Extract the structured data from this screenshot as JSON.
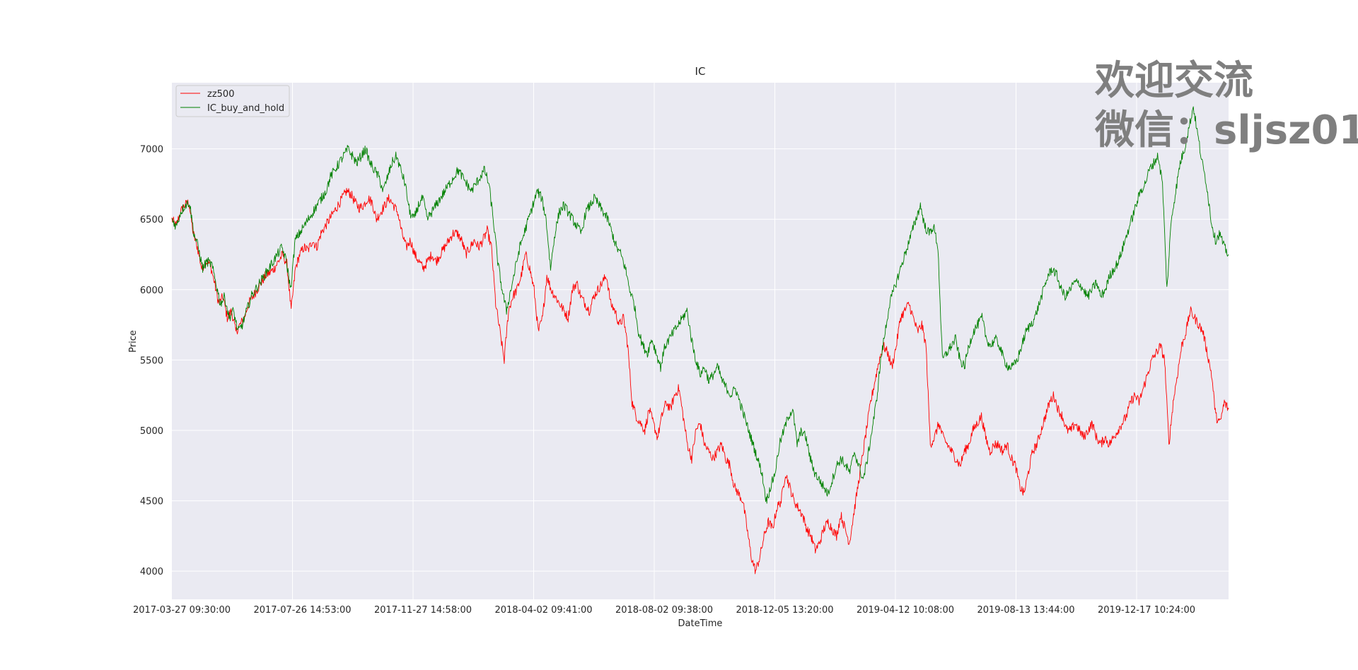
{
  "watermark": {
    "line1": "欢迎交流",
    "line2": "微信：sljsz01"
  },
  "chart_data": {
    "type": "line",
    "title": "IC",
    "xlabel": "DateTime",
    "ylabel": "Price",
    "x_tick_labels": [
      "2017-03-27 09:30:00",
      "2017-07-26 14:53:00",
      "2017-11-27 14:58:00",
      "2018-04-02 09:41:00",
      "2018-08-02 09:38:00",
      "2018-12-05 13:20:00",
      "2019-04-12 10:08:00",
      "2019-08-13 13:44:00",
      "2019-12-17 10:24:00"
    ],
    "y_ticks": [
      4000,
      4500,
      5000,
      5500,
      6000,
      6500,
      7000
    ],
    "ylim": [
      3800,
      7470
    ],
    "grid": true,
    "legend_position": "upper-left",
    "series": [
      {
        "name": "zz500",
        "color": "#ff0000",
        "values": [
          6500,
          6450,
          6550,
          6600,
          6620,
          6400,
          6300,
          6150,
          6200,
          6180,
          6050,
          5900,
          5950,
          5800,
          5850,
          5700,
          5750,
          5800,
          5900,
          5950,
          6000,
          6050,
          6100,
          6120,
          6150,
          6200,
          6250,
          6180,
          5850,
          6150,
          6250,
          6300,
          6280,
          6350,
          6300,
          6400,
          6450,
          6500,
          6550,
          6600,
          6650,
          6700,
          6680,
          6620,
          6580,
          6600,
          6650,
          6620,
          6500,
          6550,
          6600,
          6650,
          6600,
          6550,
          6400,
          6300,
          6350,
          6250,
          6200,
          6150,
          6200,
          6250,
          6200,
          6250,
          6300,
          6350,
          6400,
          6400,
          6350,
          6250,
          6300,
          6350,
          6300,
          6350,
          6420,
          6300,
          5900,
          5700,
          5500,
          5850,
          5950,
          6000,
          6100,
          6250,
          6150,
          6000,
          5700,
          5800,
          6100,
          6000,
          5950,
          5900,
          5850,
          5800,
          6000,
          6050,
          5950,
          5900,
          5850,
          5950,
          6000,
          6050,
          6100,
          5900,
          5850,
          5750,
          5800,
          5600,
          5200,
          5100,
          5050,
          5000,
          5150,
          5050,
          4950,
          5100,
          5200,
          5150,
          5250,
          5300,
          5100,
          4900,
          4800,
          5000,
          5050,
          4900,
          4850,
          4800,
          4850,
          4900,
          4800,
          4750,
          4600,
          4550,
          4500,
          4300,
          4100,
          4000,
          4100,
          4250,
          4350,
          4300,
          4450,
          4500,
          4700,
          4600,
          4500,
          4450,
          4400,
          4300,
          4250,
          4150,
          4200,
          4300,
          4350,
          4300,
          4250,
          4400,
          4300,
          4200,
          4400,
          4600,
          4800,
          5000,
          5200,
          5350,
          5500,
          5600,
          5550,
          5450,
          5600,
          5800,
          5850,
          5900,
          5800,
          5700,
          5750,
          5600,
          4900,
          4950,
          5050,
          4950,
          4900,
          4850,
          4800,
          4750,
          4850,
          4900,
          5000,
          5050,
          5100,
          4950,
          4850,
          4900,
          4900,
          4850,
          4900,
          4800,
          4750,
          4600,
          4550,
          4700,
          4850,
          4900,
          5000,
          5100,
          5200,
          5250,
          5150,
          5100,
          5000,
          5000,
          5050,
          5000,
          4950,
          5000,
          5050,
          4950,
          4900,
          4950,
          4900,
          4950,
          5000,
          5050,
          5100,
          5200,
          5250,
          5200,
          5300,
          5400,
          5500,
          5550,
          5600,
          5500,
          4900,
          5200,
          5400,
          5600,
          5700,
          5850,
          5800,
          5750,
          5700,
          5550,
          5400,
          5100,
          5050,
          5200,
          5150
        ]
      },
      {
        "name": "IC_buy_and_hold",
        "color": "#008000",
        "values": [
          6500,
          6450,
          6550,
          6600,
          6620,
          6400,
          6300,
          6150,
          6200,
          6180,
          6050,
          5900,
          5950,
          5800,
          5850,
          5700,
          5750,
          5850,
          5950,
          6000,
          6050,
          6100,
          6150,
          6200,
          6250,
          6300,
          6200,
          6000,
          6350,
          6400,
          6450,
          6500,
          6550,
          6600,
          6650,
          6700,
          6800,
          6850,
          6900,
          6950,
          7000,
          6950,
          6900,
          6950,
          7000,
          6900,
          6850,
          6800,
          6700,
          6800,
          6900,
          6950,
          6850,
          6750,
          6550,
          6500,
          6600,
          6650,
          6500,
          6550,
          6600,
          6650,
          6700,
          6750,
          6800,
          6850,
          6800,
          6750,
          6700,
          6750,
          6800,
          6850,
          6750,
          6500,
          6200,
          6000,
          5850,
          6000,
          6150,
          6300,
          6400,
          6500,
          6600,
          6700,
          6650,
          6500,
          6150,
          6400,
          6550,
          6600,
          6550,
          6500,
          6450,
          6400,
          6550,
          6600,
          6650,
          6600,
          6550,
          6500,
          6400,
          6300,
          6250,
          6150,
          6000,
          5900,
          5700,
          5600,
          5550,
          5650,
          5550,
          5450,
          5600,
          5650,
          5700,
          5750,
          5800,
          5850,
          5650,
          5500,
          5400,
          5450,
          5350,
          5400,
          5450,
          5350,
          5300,
          5250,
          5300,
          5200,
          5100,
          5000,
          4900,
          4800,
          4700,
          4500,
          4600,
          4700,
          4900,
          5000,
          5100,
          5150,
          4900,
          5000,
          4950,
          4800,
          4700,
          4650,
          4600,
          4550,
          4650,
          4750,
          4800,
          4750,
          4700,
          4850,
          4750,
          4650,
          4800,
          5000,
          5200,
          5500,
          5700,
          5900,
          6000,
          6100,
          6200,
          6300,
          6400,
          6500,
          6600,
          6450,
          6400,
          6450,
          6300,
          5500,
          5550,
          5600,
          5650,
          5500,
          5450,
          5600,
          5700,
          5750,
          5800,
          5650,
          5600,
          5650,
          5600,
          5500,
          5450,
          5450,
          5500,
          5600,
          5700,
          5750,
          5800,
          5900,
          6000,
          6100,
          6150,
          6100,
          6000,
          5950,
          6000,
          6050,
          6050,
          6000,
          5950,
          6000,
          6050,
          5950,
          6000,
          6100,
          6150,
          6200,
          6300,
          6400,
          6500,
          6600,
          6700,
          6750,
          6850,
          6900,
          6950,
          6750,
          6000,
          6500,
          6700,
          6900,
          7000,
          7150,
          7300,
          7100,
          6900,
          6750,
          6500,
          6350,
          6400,
          6300,
          6250
        ]
      }
    ]
  }
}
